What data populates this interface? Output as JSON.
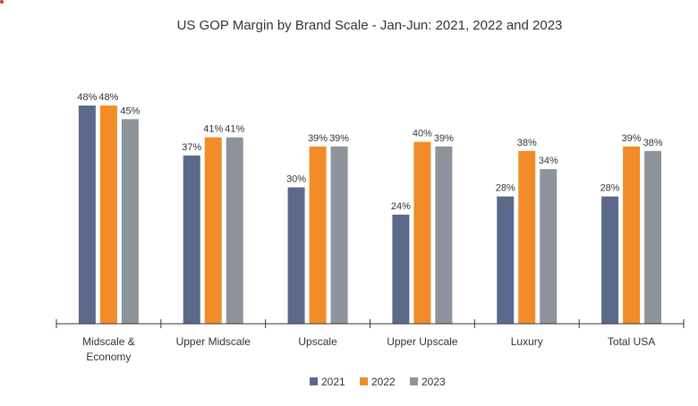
{
  "colors": {
    "2021": "#5b6a8a",
    "2022": "#f28c28",
    "2023": "#8d949b",
    "axis": "#333333",
    "text": "#333333",
    "accent_dot": "#d23a2a"
  },
  "chart_data": {
    "type": "bar",
    "title": "US GOP Margin by Brand Scale - Jan-Jun: 2021, 2022 and 2023",
    "xlabel": "",
    "ylabel": "",
    "ylim": [
      0,
      48
    ],
    "grid": false,
    "legend_position": "bottom-center",
    "value_suffix": "%",
    "categories": [
      [
        "Midscale &",
        "Economy"
      ],
      [
        "Upper Midscale"
      ],
      [
        "Upscale"
      ],
      [
        "Upper Upscale"
      ],
      [
        "Luxury"
      ],
      [
        "Total USA"
      ]
    ],
    "series": [
      {
        "name": "2021",
        "color": "#5b6a8a",
        "values": [
          48,
          37,
          30,
          24,
          28,
          28
        ]
      },
      {
        "name": "2022",
        "color": "#f28c28",
        "values": [
          48,
          41,
          39,
          40,
          38,
          39
        ]
      },
      {
        "name": "2023",
        "color": "#8d949b",
        "values": [
          45,
          41,
          39,
          39,
          34,
          38
        ]
      }
    ]
  }
}
